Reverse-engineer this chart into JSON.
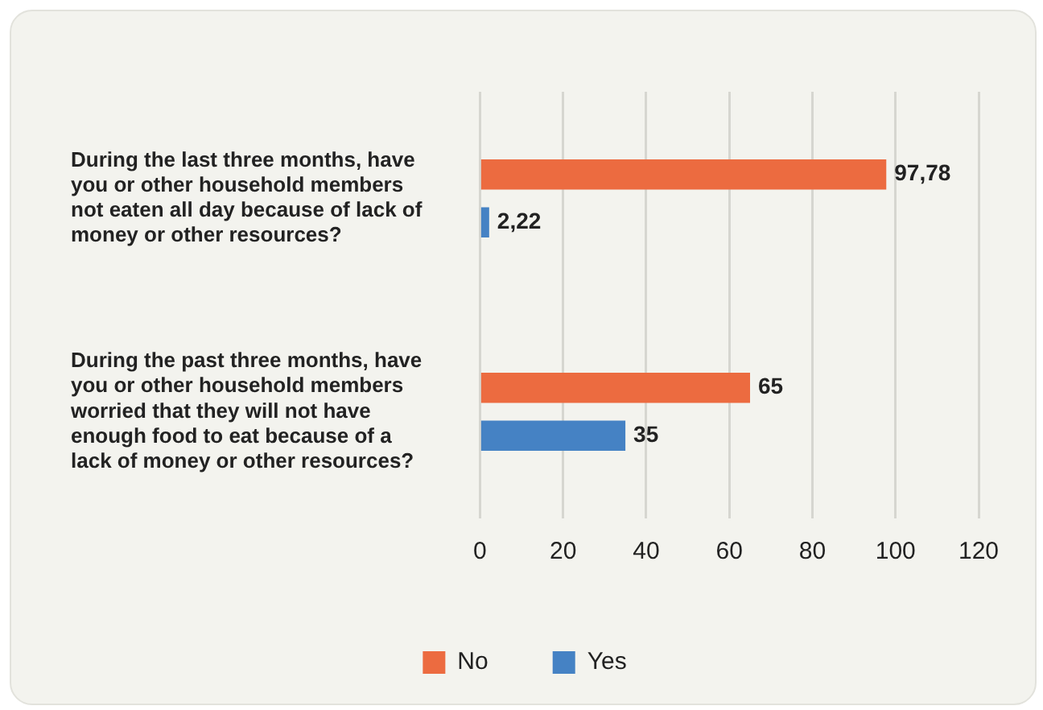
{
  "chart_data": {
    "type": "bar",
    "orientation": "horizontal",
    "categories": [
      "During the last three months, have you or other household members not eaten all day because of lack of money or other resources?",
      "During the past three months, have you or other household members worried that they will not have enough food to eat because of a lack of money or other resources?"
    ],
    "series": [
      {
        "name": "No",
        "color": "#ec6b40",
        "values": [
          97.78,
          65
        ],
        "value_labels": [
          "97,78",
          "65"
        ]
      },
      {
        "name": "Yes",
        "color": "#4582c4",
        "values": [
          2.22,
          35
        ],
        "value_labels": [
          "2,22",
          "35"
        ]
      }
    ],
    "xlim": [
      0,
      120
    ],
    "xticks": [
      0,
      20,
      40,
      60,
      80,
      100,
      120
    ],
    "grid": "x",
    "legend": "bottom"
  }
}
